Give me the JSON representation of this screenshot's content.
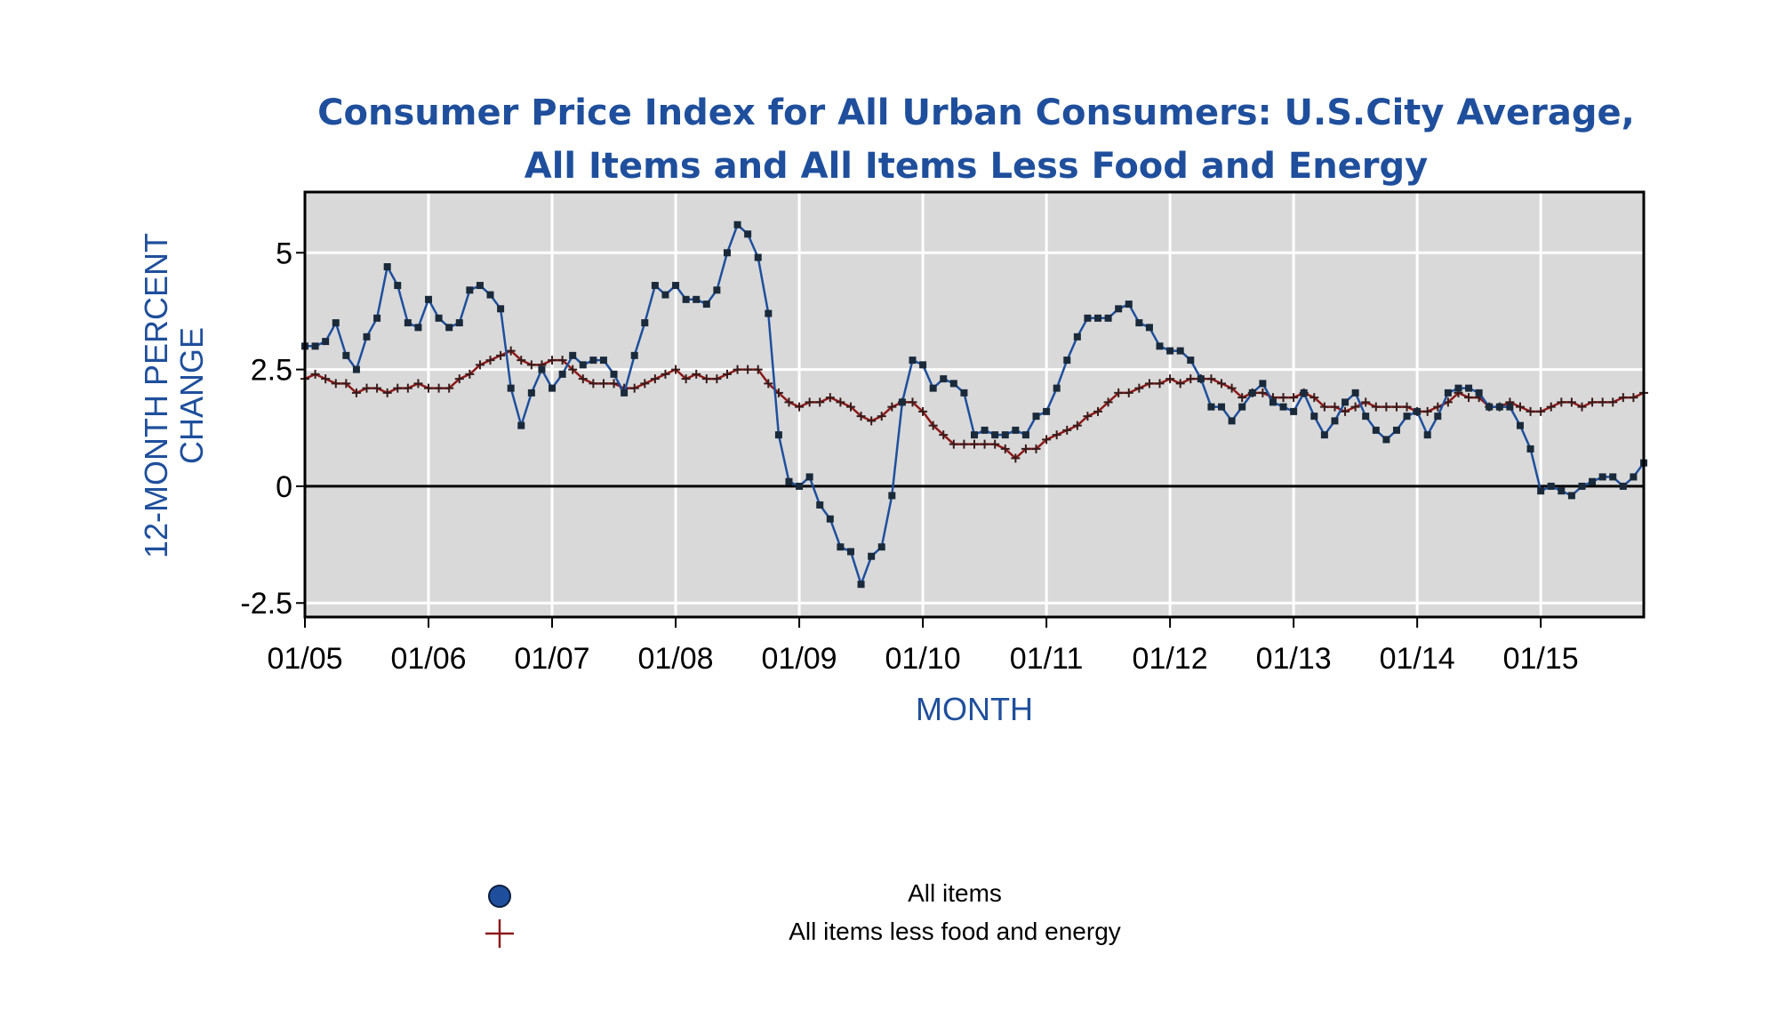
{
  "chart_data": {
    "type": "line",
    "title": "Consumer Price Index for All Urban Consumers: U.S.City Average,",
    "subtitle": "All Items and All Items Less Food and Energy",
    "xlabel": "MONTH",
    "ylabel": "12-MONTH PERCENT",
    "ylabel2": "CHANGE",
    "x_ticks": [
      "01/05",
      "01/06",
      "01/07",
      "01/08",
      "01/09",
      "01/10",
      "01/11",
      "01/12",
      "01/13",
      "01/14",
      "01/15"
    ],
    "y_ticks": [
      "5",
      "2.5",
      "0",
      "-2.5"
    ],
    "y_tick_values": [
      5,
      2.5,
      0,
      -2.5
    ],
    "ylim": [
      -2.8,
      6.3
    ],
    "x_range": [
      "2005-01",
      "2015-11"
    ],
    "grid": true,
    "series": [
      {
        "name": "All items",
        "marker": "circle",
        "color": "#1f4f9c",
        "x": [
          "2005-01",
          "2005-02",
          "2005-03",
          "2005-04",
          "2005-05",
          "2005-06",
          "2005-07",
          "2005-08",
          "2005-09",
          "2005-10",
          "2005-11",
          "2005-12",
          "2006-01",
          "2006-02",
          "2006-03",
          "2006-04",
          "2006-05",
          "2006-06",
          "2006-07",
          "2006-08",
          "2006-09",
          "2006-10",
          "2006-11",
          "2006-12",
          "2007-01",
          "2007-02",
          "2007-03",
          "2007-04",
          "2007-05",
          "2007-06",
          "2007-07",
          "2007-08",
          "2007-09",
          "2007-10",
          "2007-11",
          "2007-12",
          "2008-01",
          "2008-02",
          "2008-03",
          "2008-04",
          "2008-05",
          "2008-06",
          "2008-07",
          "2008-08",
          "2008-09",
          "2008-10",
          "2008-11",
          "2008-12",
          "2009-01",
          "2009-02",
          "2009-03",
          "2009-04",
          "2009-05",
          "2009-06",
          "2009-07",
          "2009-08",
          "2009-09",
          "2009-10",
          "2009-11",
          "2009-12",
          "2010-01",
          "2010-02",
          "2010-03",
          "2010-04",
          "2010-05",
          "2010-06",
          "2010-07",
          "2010-08",
          "2010-09",
          "2010-10",
          "2010-11",
          "2010-12",
          "2011-01",
          "2011-02",
          "2011-03",
          "2011-04",
          "2011-05",
          "2011-06",
          "2011-07",
          "2011-08",
          "2011-09",
          "2011-10",
          "2011-11",
          "2011-12",
          "2012-01",
          "2012-02",
          "2012-03",
          "2012-04",
          "2012-05",
          "2012-06",
          "2012-07",
          "2012-08",
          "2012-09",
          "2012-10",
          "2012-11",
          "2012-12",
          "2013-01",
          "2013-02",
          "2013-03",
          "2013-04",
          "2013-05",
          "2013-06",
          "2013-07",
          "2013-08",
          "2013-09",
          "2013-10",
          "2013-11",
          "2013-12",
          "2014-01",
          "2014-02",
          "2014-03",
          "2014-04",
          "2014-05",
          "2014-06",
          "2014-07",
          "2014-08",
          "2014-09",
          "2014-10",
          "2014-11",
          "2014-12",
          "2015-01",
          "2015-02",
          "2015-03",
          "2015-04",
          "2015-05",
          "2015-06",
          "2015-07",
          "2015-08",
          "2015-09",
          "2015-10",
          "2015-11"
        ],
        "values": [
          3.0,
          3.0,
          3.1,
          3.5,
          2.8,
          2.5,
          3.2,
          3.6,
          4.7,
          4.3,
          3.5,
          3.4,
          4.0,
          3.6,
          3.4,
          3.5,
          4.2,
          4.3,
          4.1,
          3.8,
          2.1,
          1.3,
          2.0,
          2.5,
          2.1,
          2.4,
          2.8,
          2.6,
          2.7,
          2.7,
          2.4,
          2.0,
          2.8,
          3.5,
          4.3,
          4.1,
          4.3,
          4.0,
          4.0,
          3.9,
          4.2,
          5.0,
          5.6,
          5.4,
          4.9,
          3.7,
          1.1,
          0.1,
          0.0,
          0.2,
          -0.4,
          -0.7,
          -1.3,
          -1.4,
          -2.1,
          -1.5,
          -1.3,
          -0.2,
          1.8,
          2.7,
          2.6,
          2.1,
          2.3,
          2.2,
          2.0,
          1.1,
          1.2,
          1.1,
          1.1,
          1.2,
          1.1,
          1.5,
          1.6,
          2.1,
          2.7,
          3.2,
          3.6,
          3.6,
          3.6,
          3.8,
          3.9,
          3.5,
          3.4,
          3.0,
          2.9,
          2.9,
          2.7,
          2.3,
          1.7,
          1.7,
          1.4,
          1.7,
          2.0,
          2.2,
          1.8,
          1.7,
          1.6,
          2.0,
          1.5,
          1.1,
          1.4,
          1.8,
          2.0,
          1.5,
          1.2,
          1.0,
          1.2,
          1.5,
          1.6,
          1.1,
          1.5,
          2.0,
          2.1,
          2.1,
          2.0,
          1.7,
          1.7,
          1.7,
          1.3,
          0.8,
          -0.1,
          0.0,
          -0.1,
          -0.2,
          0.0,
          0.1,
          0.2,
          0.2,
          0.0,
          0.2,
          0.5
        ]
      },
      {
        "name": "All items less food and energy",
        "marker": "plus",
        "color": "#8b1a1a",
        "x": [
          "2005-01",
          "2005-02",
          "2005-03",
          "2005-04",
          "2005-05",
          "2005-06",
          "2005-07",
          "2005-08",
          "2005-09",
          "2005-10",
          "2005-11",
          "2005-12",
          "2006-01",
          "2006-02",
          "2006-03",
          "2006-04",
          "2006-05",
          "2006-06",
          "2006-07",
          "2006-08",
          "2006-09",
          "2006-10",
          "2006-11",
          "2006-12",
          "2007-01",
          "2007-02",
          "2007-03",
          "2007-04",
          "2007-05",
          "2007-06",
          "2007-07",
          "2007-08",
          "2007-09",
          "2007-10",
          "2007-11",
          "2007-12",
          "2008-01",
          "2008-02",
          "2008-03",
          "2008-04",
          "2008-05",
          "2008-06",
          "2008-07",
          "2008-08",
          "2008-09",
          "2008-10",
          "2008-11",
          "2008-12",
          "2009-01",
          "2009-02",
          "2009-03",
          "2009-04",
          "2009-05",
          "2009-06",
          "2009-07",
          "2009-08",
          "2009-09",
          "2009-10",
          "2009-11",
          "2009-12",
          "2010-01",
          "2010-02",
          "2010-03",
          "2010-04",
          "2010-05",
          "2010-06",
          "2010-07",
          "2010-08",
          "2010-09",
          "2010-10",
          "2010-11",
          "2010-12",
          "2011-01",
          "2011-02",
          "2011-03",
          "2011-04",
          "2011-05",
          "2011-06",
          "2011-07",
          "2011-08",
          "2011-09",
          "2011-10",
          "2011-11",
          "2011-12",
          "2012-01",
          "2012-02",
          "2012-03",
          "2012-04",
          "2012-05",
          "2012-06",
          "2012-07",
          "2012-08",
          "2012-09",
          "2012-10",
          "2012-11",
          "2012-12",
          "2013-01",
          "2013-02",
          "2013-03",
          "2013-04",
          "2013-05",
          "2013-06",
          "2013-07",
          "2013-08",
          "2013-09",
          "2013-10",
          "2013-11",
          "2013-12",
          "2014-01",
          "2014-02",
          "2014-03",
          "2014-04",
          "2014-05",
          "2014-06",
          "2014-07",
          "2014-08",
          "2014-09",
          "2014-10",
          "2014-11",
          "2014-12",
          "2015-01",
          "2015-02",
          "2015-03",
          "2015-04",
          "2015-05",
          "2015-06",
          "2015-07",
          "2015-08",
          "2015-09",
          "2015-10",
          "2015-11"
        ],
        "values": [
          2.3,
          2.4,
          2.3,
          2.2,
          2.2,
          2.0,
          2.1,
          2.1,
          2.0,
          2.1,
          2.1,
          2.2,
          2.1,
          2.1,
          2.1,
          2.3,
          2.4,
          2.6,
          2.7,
          2.8,
          2.9,
          2.7,
          2.6,
          2.6,
          2.7,
          2.7,
          2.5,
          2.3,
          2.2,
          2.2,
          2.2,
          2.1,
          2.1,
          2.2,
          2.3,
          2.4,
          2.5,
          2.3,
          2.4,
          2.3,
          2.3,
          2.4,
          2.5,
          2.5,
          2.5,
          2.2,
          2.0,
          1.8,
          1.7,
          1.8,
          1.8,
          1.9,
          1.8,
          1.7,
          1.5,
          1.4,
          1.5,
          1.7,
          1.8,
          1.8,
          1.6,
          1.3,
          1.1,
          0.9,
          0.9,
          0.9,
          0.9,
          0.9,
          0.8,
          0.6,
          0.8,
          0.8,
          1.0,
          1.1,
          1.2,
          1.3,
          1.5,
          1.6,
          1.8,
          2.0,
          2.0,
          2.1,
          2.2,
          2.2,
          2.3,
          2.2,
          2.3,
          2.3,
          2.3,
          2.2,
          2.1,
          1.9,
          2.0,
          2.0,
          1.9,
          1.9,
          1.9,
          2.0,
          1.9,
          1.7,
          1.7,
          1.6,
          1.7,
          1.8,
          1.7,
          1.7,
          1.7,
          1.7,
          1.6,
          1.6,
          1.7,
          1.8,
          2.0,
          1.9,
          1.9,
          1.7,
          1.7,
          1.8,
          1.7,
          1.6,
          1.6,
          1.7,
          1.8,
          1.8,
          1.7,
          1.8,
          1.8,
          1.8,
          1.9,
          1.9,
          2.0
        ]
      }
    ],
    "legend": {
      "placement": "bottom",
      "entries": [
        "All items",
        "All items less food and energy"
      ]
    },
    "colors": {
      "plot_background": "#d9d9d9",
      "grid": "#ffffff",
      "zero_line": "#000000",
      "title": "#1f4f9c",
      "all_items_line": "#1f4f9c",
      "all_items_marker": "#1a2a3a",
      "core_line": "#8b1a1a",
      "core_marker": "#3a1a1a"
    }
  }
}
